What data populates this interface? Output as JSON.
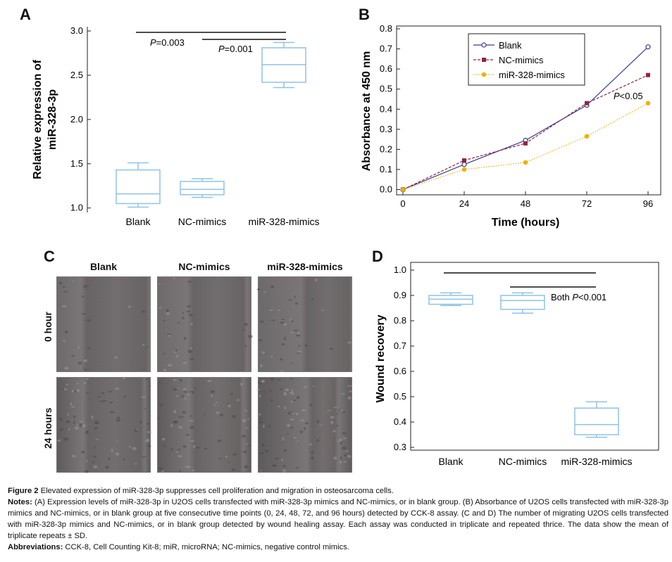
{
  "panels": {
    "A": {
      "letter": "A",
      "chart_data": {
        "type": "box",
        "categories": [
          "Blank",
          "NC-mimics",
          "miR-328-mimics"
        ],
        "boxes": [
          {
            "min": 1.01,
            "q1": 1.05,
            "median": 1.16,
            "q3": 1.43,
            "max": 1.51
          },
          {
            "min": 1.12,
            "q1": 1.15,
            "median": 1.21,
            "q3": 1.3,
            "max": 1.33
          },
          {
            "min": 2.36,
            "q1": 2.42,
            "median": 2.62,
            "q3": 2.81,
            "max": 2.87
          }
        ],
        "ylabel_line1": "Relative expression of",
        "ylabel_line2": "miR-328-3p",
        "ylim": [
          0.95,
          3.0
        ],
        "yticks": [
          "1.0",
          "1.5",
          "2.0",
          "2.5",
          "3.0"
        ],
        "box_color": "#8fc3e6",
        "annotations": [
          {
            "p_letter": "P",
            "text": "=0.003"
          },
          {
            "p_letter": "P",
            "text": "=0.001"
          }
        ]
      }
    },
    "B": {
      "letter": "B",
      "chart_data": {
        "type": "line",
        "x": [
          0,
          24,
          48,
          72,
          96
        ],
        "xticks": [
          "0",
          "24",
          "48",
          "72",
          "96"
        ],
        "xlabel": "Time (hours)",
        "ylabel": "Absorbance at 450 nm",
        "ylim": [
          -0.02,
          0.8
        ],
        "yticks": [
          "0.0",
          "0.1",
          "0.2",
          "0.3",
          "0.4",
          "0.5",
          "0.6",
          "0.7",
          "0.8"
        ],
        "legend_position": "top-right",
        "series": [
          {
            "name": "Blank",
            "values": [
              0.0,
              0.125,
              0.245,
              0.42,
              0.71
            ],
            "color": "#3b3b8f",
            "marker": "circle",
            "dash": "solid"
          },
          {
            "name": "NC-mimics",
            "values": [
              0.0,
              0.145,
              0.23,
              0.43,
              0.57
            ],
            "color": "#8b2742",
            "marker": "square",
            "dash": "dash"
          },
          {
            "name": "miR-328-mimics",
            "values": [
              0.0,
              0.1,
              0.135,
              0.265,
              0.43
            ],
            "color": "#f0b000",
            "marker": "dot",
            "dash": "dot"
          }
        ],
        "annotation": {
          "p_letter": "P",
          "text": "<0.05"
        }
      }
    },
    "C": {
      "letter": "C",
      "columns": [
        "Blank",
        "NC-mimics",
        "miR-328-mimics"
      ],
      "rows": [
        "0 hour",
        "24 hours"
      ]
    },
    "D": {
      "letter": "D",
      "chart_data": {
        "type": "box",
        "categories": [
          "Blank",
          "NC-mimics",
          "miR-328-mimics"
        ],
        "boxes": [
          {
            "min": 0.86,
            "q1": 0.865,
            "median": 0.885,
            "q3": 0.9,
            "max": 0.91
          },
          {
            "min": 0.83,
            "q1": 0.845,
            "median": 0.88,
            "q3": 0.9,
            "max": 0.91
          },
          {
            "min": 0.34,
            "q1": 0.35,
            "median": 0.39,
            "q3": 0.455,
            "max": 0.48
          }
        ],
        "ylabel": "Wound recovery",
        "ylim": [
          0.3,
          1.0
        ],
        "yticks": [
          "0.3",
          "0.4",
          "0.5",
          "0.6",
          "0.7",
          "0.8",
          "0.9",
          "1.0"
        ],
        "box_color": "#8fc3e6",
        "annotation": {
          "prefix": "Both ",
          "p_letter": "P",
          "text": "<0.001"
        }
      }
    }
  },
  "caption": {
    "figure_label": "Figure 2",
    "figure_title": " Elevated expression of miR-328-3p suppresses cell proliferation and migration in osteosarcoma cells.",
    "notes_label": "Notes:",
    "notes_text": " (A) Expression levels of miR-328-3p in U2OS cells transfected with miR-328-3p mimics and NC-mimics, or in blank group. (B) Absorbance of U2OS cells transfected with miR-328-3p mimics and NC-mimics, or in blank group at five consecutive time points (0, 24, 48, 72, and 96 hours) detected by CCK-8 assay. (C and D) The number of migrating U2OS cells transfected with miR-328-3p mimics and NC-mimics, or in blank group detected by wound healing assay. Each assay was conducted in triplicate and repeated thrice. The data show the mean of triplicate repeats ± SD.",
    "abbr_label": "Abbreviations:",
    "abbr_text": " CCK-8, Cell Counting Kit-8; miR, microRNA; NC-mimics, negative control mimics."
  }
}
